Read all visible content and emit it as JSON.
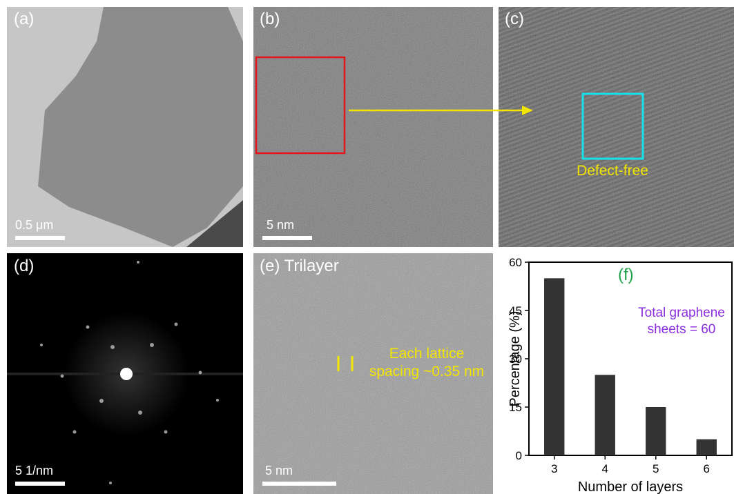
{
  "panels": [
    {
      "label": "(a)",
      "scale_bar": "0.5 μm"
    },
    {
      "label": "(b)",
      "scale_bar": "5 nm"
    },
    {
      "label": "(c)",
      "annotation": "Defect-free"
    },
    {
      "label": "(d)",
      "scale_bar": "5 1/nm"
    },
    {
      "label": "(e) Trilayer",
      "annotation": "Each lattice spacing ~0.35 nm",
      "scale_bar": "5 nm"
    }
  ],
  "chart_data": {
    "type": "bar",
    "title": "(f)",
    "annotation": "Total graphene sheets = 60",
    "categories": [
      "3",
      "4",
      "5",
      "6"
    ],
    "values": [
      55,
      25,
      15,
      5
    ],
    "color": "#333333",
    "xlabel": "Number of layers",
    "ylabel": "Percentage (%)",
    "ylim": [
      0,
      60
    ],
    "yticks": [
      0,
      15,
      30,
      45,
      60
    ]
  }
}
